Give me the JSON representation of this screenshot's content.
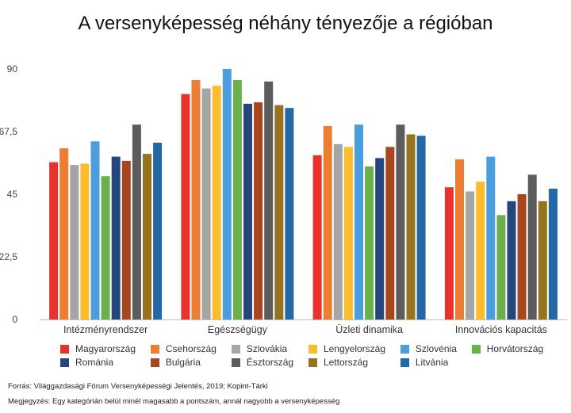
{
  "chart_data": {
    "type": "bar",
    "title": "A versenyképesség néhány tényezője a régióban",
    "categories": [
      "Intézményrendszer",
      "Egészségügy",
      "Üzleti dinamika",
      "Innovációs kapacitás"
    ],
    "ylim": [
      0,
      90
    ],
    "yticks": [
      "0",
      "22,5",
      "45",
      "67,5",
      "90"
    ],
    "ytick_values": [
      0,
      22.5,
      45,
      67.5,
      90
    ],
    "grid": false,
    "legend_position": "bottom",
    "series": [
      {
        "name": "Magyarország",
        "color": "#e8322b",
        "values": [
          56.5,
          81,
          59,
          47.5
        ]
      },
      {
        "name": "Csehország",
        "color": "#ed7d31",
        "values": [
          61.5,
          86,
          69.5,
          57.5
        ]
      },
      {
        "name": "Szlovákia",
        "color": "#a5a5a5",
        "values": [
          55.5,
          83,
          63,
          46
        ]
      },
      {
        "name": "Lengyelország",
        "color": "#fdbd2a",
        "values": [
          56,
          84,
          62,
          49.5
        ]
      },
      {
        "name": "Szlovénia",
        "color": "#4a9ede",
        "values": [
          64,
          90,
          70,
          58.5
        ]
      },
      {
        "name": "Horvátország",
        "color": "#6ab04c",
        "values": [
          51.5,
          86,
          55,
          37.5
        ]
      },
      {
        "name": "Románia",
        "color": "#24467c",
        "values": [
          58.5,
          77.5,
          58,
          42.5
        ]
      },
      {
        "name": "Bulgária",
        "color": "#a8461d",
        "values": [
          57,
          78,
          62,
          45
        ]
      },
      {
        "name": "Észtország",
        "color": "#5c5c5c",
        "values": [
          70,
          85.5,
          70,
          52
        ]
      },
      {
        "name": "Lettország",
        "color": "#95731f",
        "values": [
          59.5,
          77,
          66.5,
          42.5
        ]
      },
      {
        "name": "Litvánia",
        "color": "#2468a8",
        "values": [
          63.5,
          76,
          66,
          47
        ]
      }
    ]
  },
  "footer": {
    "source": "Forrás: Világgazdasági Fórum Versenyképességi Jelentés, 2019; Kopint-Tárki",
    "remark": "Megjegyzés: Egy kategórián belül minél magasabb a pontszám, annál nagyobb a versenyképesség"
  }
}
